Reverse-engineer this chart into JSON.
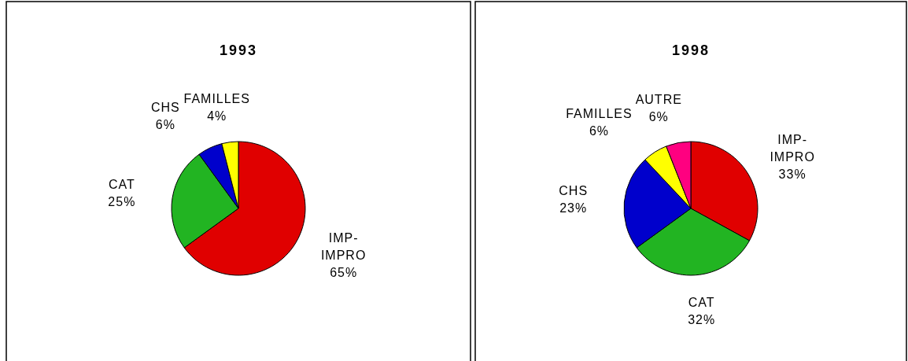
{
  "chart_data": [
    {
      "type": "pie",
      "title": "1993",
      "categories": [
        "IMP-IMPRO",
        "CAT",
        "CHS",
        "FAMILLES"
      ],
      "values": [
        65,
        25,
        6,
        4
      ],
      "colors": [
        "#e00000",
        "#22b422",
        "#0000cc",
        "#ffff00"
      ],
      "value_labels": [
        "65%",
        "25%",
        "6%",
        "4%"
      ]
    },
    {
      "type": "pie",
      "title": "1998",
      "categories": [
        "IMP-IMPRO",
        "CAT",
        "CHS",
        "FAMILLES",
        "AUTRE"
      ],
      "values": [
        33,
        32,
        23,
        6,
        6
      ],
      "colors": [
        "#e00000",
        "#22b422",
        "#0000cc",
        "#ffff00",
        "#ff0080"
      ],
      "value_labels": [
        "33%",
        "32%",
        "23%",
        "6%",
        "6%"
      ]
    }
  ]
}
